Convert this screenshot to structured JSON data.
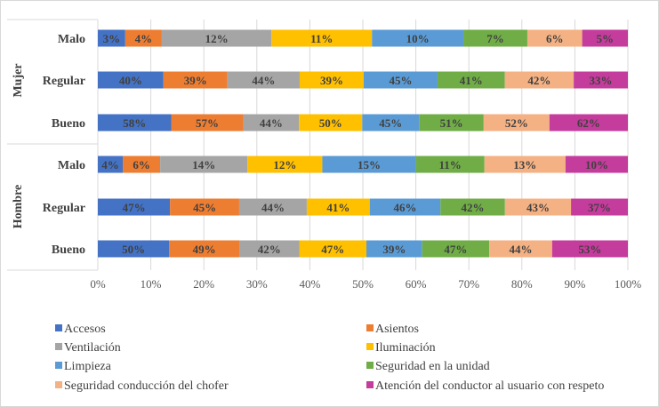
{
  "chart_data": {
    "type": "bar",
    "orientation": "horizontal",
    "stacking": "percent",
    "title": "",
    "xlabel": "",
    "ylabel": "",
    "xlim": [
      0,
      100
    ],
    "x_ticks": [
      "0%",
      "10%",
      "20%",
      "30%",
      "40%",
      "50%",
      "60%",
      "70%",
      "80%",
      "90%",
      "100%"
    ],
    "grid": true,
    "legend_position": "bottom",
    "groups": [
      {
        "name": "Mujer",
        "categories": [
          "Malo",
          "Regular",
          "Bueno"
        ]
      },
      {
        "name": "Hombre",
        "categories": [
          "Malo",
          "Regular",
          "Bueno"
        ]
      }
    ],
    "series": [
      {
        "name": "Accesos",
        "color": "#4472C4",
        "values": [
          3,
          40,
          58,
          4,
          47,
          50
        ]
      },
      {
        "name": "Asientos",
        "color": "#ED7D31",
        "values": [
          4,
          39,
          57,
          6,
          45,
          49
        ]
      },
      {
        "name": "Ventilación",
        "color": "#A5A5A5",
        "values": [
          12,
          44,
          44,
          14,
          44,
          42
        ]
      },
      {
        "name": "Iluminación",
        "color": "#FFC000",
        "values": [
          11,
          39,
          50,
          12,
          41,
          47
        ]
      },
      {
        "name": "Limpieza",
        "color": "#5B9BD5",
        "values": [
          10,
          45,
          45,
          15,
          46,
          39
        ]
      },
      {
        "name": "Seguridad en la unidad",
        "color": "#70AD47",
        "values": [
          7,
          41,
          51,
          11,
          42,
          47
        ]
      },
      {
        "name": "Seguridad conducción del chofer",
        "color": "#F4B183",
        "values": [
          6,
          42,
          52,
          13,
          43,
          44
        ]
      },
      {
        "name": "Atención del conductor al usuario con respeto",
        "color": "#C43C9C",
        "values": [
          5,
          33,
          62,
          10,
          37,
          53
        ]
      }
    ],
    "data_label_suffix": "%"
  }
}
